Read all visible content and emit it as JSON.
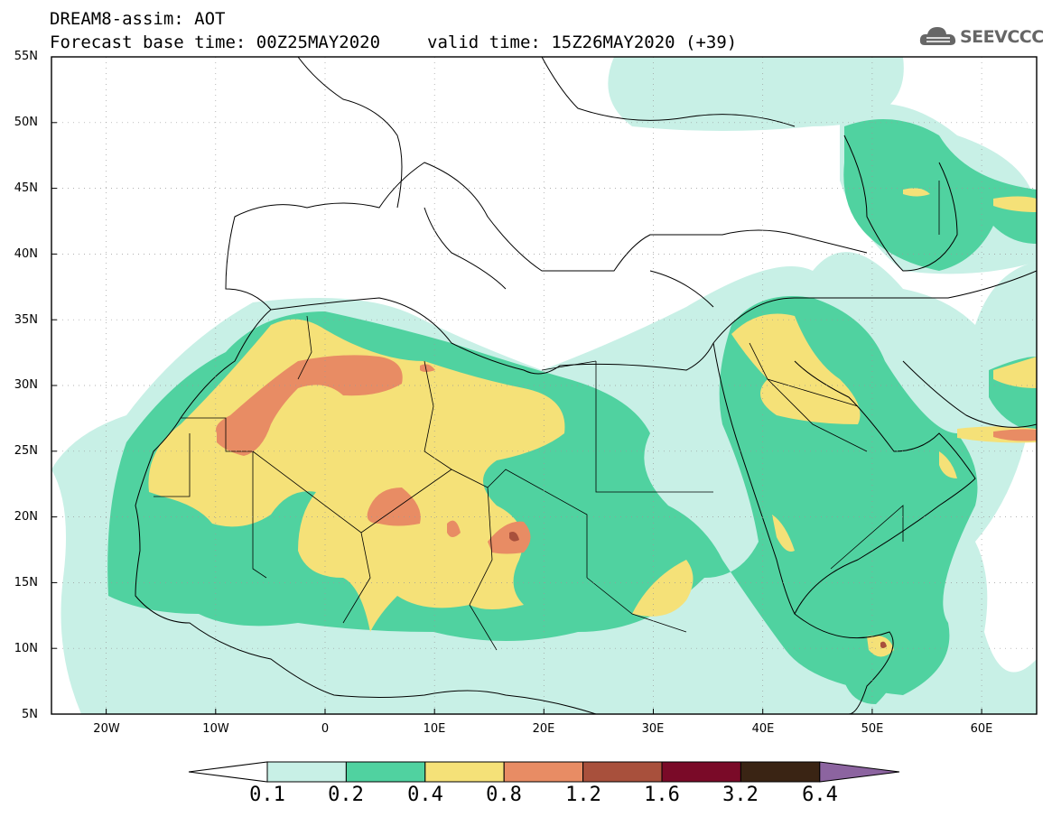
{
  "header": {
    "title_line1": "DREAM8-assim: AOT",
    "base_time": "Forecast base time: 00Z25MAY2020",
    "valid_time": "valid time: 15Z26MAY2020 (+39)"
  },
  "logo": {
    "text": "SEEVCCC",
    "icon": "cloud-icon"
  },
  "map": {
    "lat_ticks": [
      "55N",
      "50N",
      "45N",
      "40N",
      "35N",
      "30N",
      "25N",
      "20N",
      "15N",
      "10N",
      "5N"
    ],
    "lon_ticks": [
      "20W",
      "10W",
      "0",
      "10E",
      "20E",
      "30E",
      "40E",
      "50E",
      "60E"
    ],
    "extent": {
      "lon_min": -25,
      "lon_max": 65,
      "lat_min": 5,
      "lat_max": 55
    }
  },
  "colorbar": {
    "labels": [
      "0.1",
      "0.2",
      "0.4",
      "0.8",
      "1.2",
      "1.6",
      "3.2",
      "6.4"
    ],
    "colors": [
      "#c8f0e6",
      "#50d2a0",
      "#f5e178",
      "#e88c64",
      "#a8503c",
      "#7a0a28",
      "#3a2414",
      "#8c64a0"
    ],
    "under_color": "#ffffff"
  }
}
